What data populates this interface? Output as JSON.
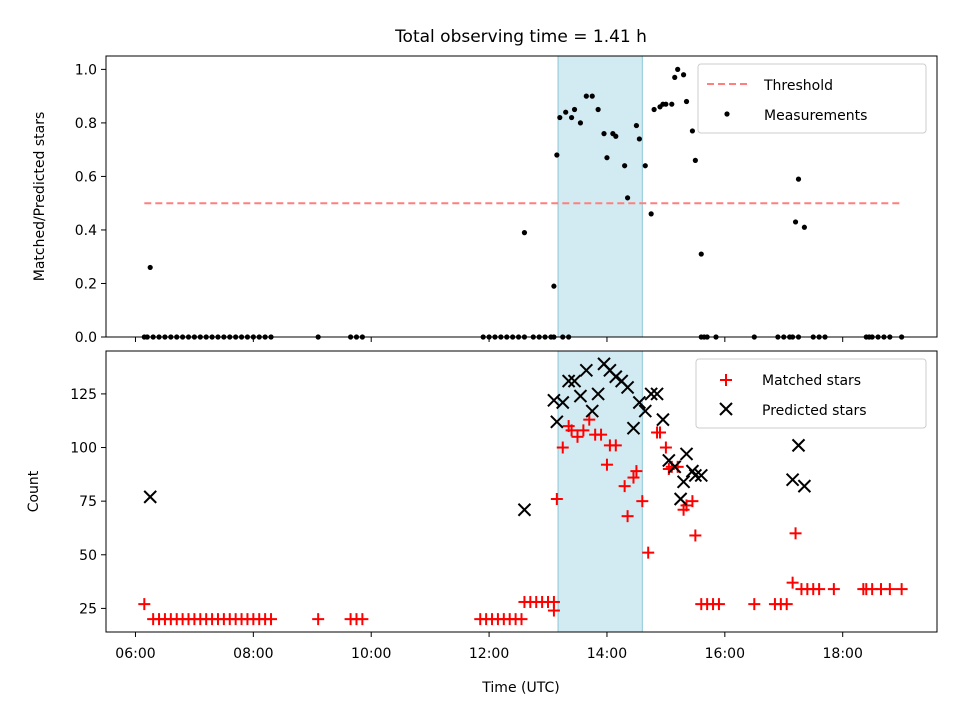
{
  "title": "Total observing time = 1.41 h",
  "chart_data": [
    {
      "type": "scatter",
      "ylabel": "Matched/Predicted stars",
      "xlabel": "",
      "xlim": [
        5.5,
        19.6
      ],
      "ylim": [
        0,
        1.05
      ],
      "yticks": [
        0.0,
        0.2,
        0.4,
        0.6,
        0.8,
        1.0
      ],
      "ytick_labels": [
        "0.0",
        "0.2",
        "0.4",
        "0.6",
        "0.8",
        "1.0"
      ],
      "xticks": [
        6,
        8,
        10,
        12,
        14,
        16,
        18
      ],
      "grid": false,
      "legend_position": "top-right",
      "shaded_region": {
        "x": [
          13.17,
          14.6
        ],
        "color": "#add8e6"
      },
      "threshold": {
        "name": "Threshold",
        "y": 0.5,
        "x": [
          6.15,
          19.0
        ],
        "color": "#ff7f7f",
        "style": "dashed"
      },
      "series": [
        {
          "name": "Measurements",
          "color": "#000000",
          "marker": "dot",
          "x": [
            6.15,
            6.25,
            6.3,
            6.4,
            6.5,
            6.6,
            6.7,
            6.8,
            6.9,
            7.0,
            7.1,
            7.2,
            7.3,
            7.4,
            7.5,
            7.6,
            7.7,
            7.8,
            7.9,
            8.0,
            8.1,
            8.2,
            8.3,
            9.1,
            9.65,
            9.75,
            9.85,
            11.9,
            12.0,
            12.1,
            12.2,
            12.3,
            12.4,
            12.5,
            12.6,
            12.75,
            12.85,
            12.95,
            13.05,
            13.1,
            13.15,
            13.2,
            13.3,
            13.4,
            13.45,
            13.55,
            13.65,
            13.75,
            13.85,
            13.95,
            14.0,
            14.1,
            14.15,
            14.3,
            14.35,
            14.5,
            14.55,
            14.65,
            14.75,
            14.8,
            14.9,
            14.95,
            15.0,
            15.1,
            15.15,
            15.2,
            15.3,
            15.35,
            15.45,
            15.5,
            15.6,
            15.65,
            15.7,
            15.85,
            16.5,
            16.9,
            17.0,
            17.1,
            17.2,
            17.25,
            17.35,
            17.5,
            17.6,
            17.7,
            18.4,
            18.45,
            18.5,
            18.6,
            18.7,
            18.8,
            19.0,
            6.2,
            12.6,
            13.1,
            13.25,
            13.35,
            15.6,
            17.15,
            17.25
          ],
          "y": [
            0,
            0.26,
            0,
            0,
            0,
            0,
            0,
            0,
            0,
            0,
            0,
            0,
            0,
            0,
            0,
            0,
            0,
            0,
            0,
            0,
            0,
            0,
            0,
            0,
            0,
            0,
            0,
            0,
            0,
            0,
            0,
            0,
            0,
            0,
            0.39,
            0,
            0,
            0,
            0,
            0.19,
            0.68,
            0.82,
            0.84,
            0.82,
            0.85,
            0.8,
            0.9,
            0.9,
            0.85,
            0.76,
            0.67,
            0.76,
            0.75,
            0.64,
            0.52,
            0.79,
            0.74,
            0.64,
            0.46,
            0.85,
            0.86,
            0.87,
            0.87,
            0.87,
            0.97,
            1.0,
            0.98,
            0.88,
            0.77,
            0.66,
            0.31,
            0,
            0,
            0,
            0,
            0,
            0,
            0,
            0.43,
            0.59,
            0.41,
            0,
            0,
            0,
            0,
            0,
            0,
            0,
            0,
            0,
            0,
            0,
            0,
            0,
            0,
            0,
            0,
            0,
            0
          ]
        }
      ]
    },
    {
      "type": "scatter",
      "ylabel": "Count",
      "xlabel": "Time (UTC)",
      "xlim": [
        5.5,
        19.6
      ],
      "ylim": [
        14,
        145
      ],
      "yticks": [
        25,
        50,
        75,
        100,
        125
      ],
      "ytick_labels": [
        "25",
        "50",
        "75",
        "100",
        "125"
      ],
      "xticks": [
        6,
        8,
        10,
        12,
        14,
        16,
        18
      ],
      "xtick_labels": [
        "06:00",
        "08:00",
        "10:00",
        "12:00",
        "14:00",
        "16:00",
        "18:00"
      ],
      "grid": false,
      "legend_position": "top-right",
      "shaded_region": {
        "x": [
          13.17,
          14.6
        ],
        "color": "#add8e6"
      },
      "series": [
        {
          "name": "Matched stars",
          "color": "#ff0000",
          "marker": "plus",
          "x": [
            6.15,
            6.3,
            6.4,
            6.5,
            6.6,
            6.7,
            6.8,
            6.9,
            7.0,
            7.1,
            7.2,
            7.3,
            7.4,
            7.5,
            7.6,
            7.7,
            7.8,
            7.9,
            8.0,
            8.1,
            8.2,
            8.3,
            9.1,
            9.65,
            9.75,
            9.85,
            11.85,
            11.95,
            12.05,
            12.15,
            12.25,
            12.35,
            12.45,
            12.55,
            12.6,
            12.7,
            12.8,
            12.9,
            13.0,
            13.1,
            13.1,
            13.15,
            13.25,
            13.35,
            13.4,
            13.5,
            13.6,
            13.7,
            13.8,
            13.9,
            14.0,
            14.05,
            14.15,
            14.3,
            14.35,
            14.45,
            14.5,
            14.6,
            14.7,
            14.85,
            14.9,
            15.0,
            15.05,
            15.1,
            15.2,
            15.3,
            15.35,
            15.45,
            15.5,
            15.6,
            15.7,
            15.8,
            15.9,
            16.5,
            16.85,
            16.95,
            17.05,
            17.15,
            17.2,
            17.3,
            17.4,
            17.5,
            17.6,
            17.85,
            18.35,
            18.4,
            18.5,
            18.65,
            18.8,
            19.0
          ],
          "y": [
            27,
            20,
            20,
            20,
            20,
            20,
            20,
            20,
            20,
            20,
            20,
            20,
            20,
            20,
            20,
            20,
            20,
            20,
            20,
            20,
            20,
            20,
            20,
            20,
            20,
            20,
            20,
            20,
            20,
            20,
            20,
            20,
            20,
            20,
            28,
            28,
            28,
            28,
            28,
            24,
            28,
            76,
            100,
            110,
            108,
            105,
            108,
            113,
            106,
            106,
            92,
            101,
            101,
            82,
            68,
            86,
            89,
            75,
            51,
            107,
            107,
            100,
            90,
            91,
            91,
            71,
            73,
            75,
            59,
            27,
            27,
            27,
            27,
            27,
            27,
            27,
            27,
            37,
            60,
            34,
            34,
            34,
            34,
            34,
            34,
            34,
            34,
            34,
            34,
            34
          ]
        },
        {
          "name": "Predicted stars",
          "color": "#000000",
          "marker": "x",
          "x": [
            6.25,
            12.6,
            13.1,
            13.15,
            13.25,
            13.35,
            13.45,
            13.55,
            13.65,
            13.75,
            13.85,
            13.95,
            14.05,
            14.15,
            14.25,
            14.35,
            14.45,
            14.55,
            14.65,
            14.75,
            14.85,
            14.95,
            15.05,
            15.15,
            15.25,
            15.3,
            15.35,
            15.45,
            15.5,
            15.6,
            17.15,
            17.25,
            17.35
          ],
          "y": [
            77,
            71,
            122,
            112,
            121,
            131,
            131,
            124,
            136,
            117,
            125,
            139,
            136,
            133,
            131,
            128,
            109,
            121,
            117,
            125,
            125,
            113,
            94,
            91,
            76,
            84,
            97,
            89,
            87,
            87,
            85,
            101,
            82
          ]
        }
      ]
    }
  ]
}
